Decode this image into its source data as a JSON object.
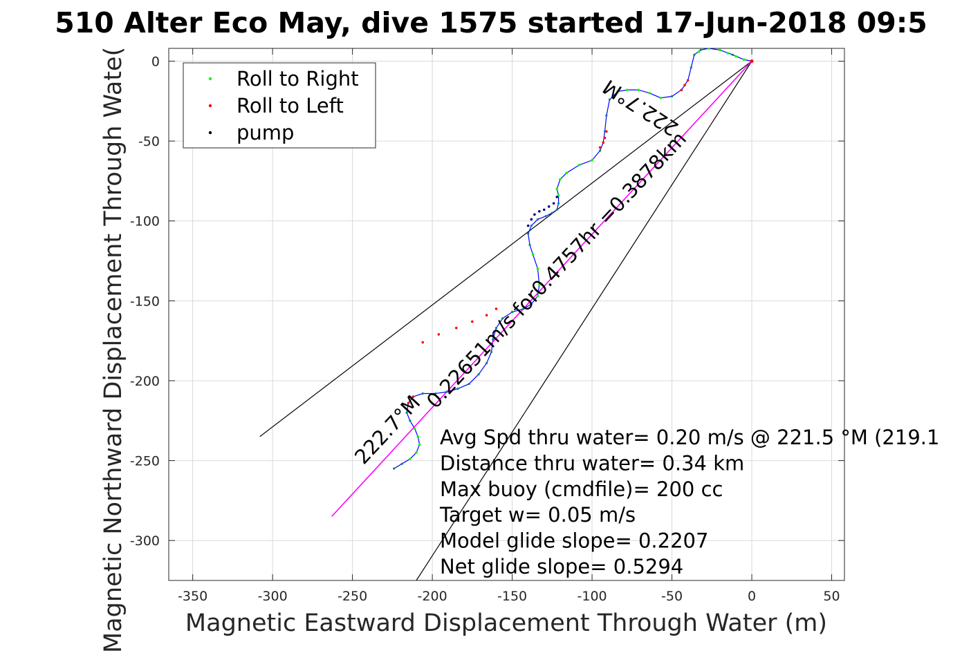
{
  "chart_data": {
    "type": "line",
    "title": "510 Alter Eco May, dive 1575 started 17-Jun-2018 09:5",
    "xlabel": "Magnetic Eastward Displacement Through Water (m)",
    "ylabel": "Magnetic Northward Displacement Through Wate(",
    "xlim": [
      -365,
      58
    ],
    "ylim": [
      -325,
      8
    ],
    "xticks": [
      -350,
      -300,
      -250,
      -200,
      -150,
      -100,
      -50,
      0,
      50
    ],
    "yticks": [
      0,
      -50,
      -100,
      -150,
      -200,
      -250,
      -300
    ],
    "grid": true,
    "legend_position": "top-left",
    "legend": [
      {
        "label": "Roll to Right",
        "color": "#00ff00"
      },
      {
        "label": "Roll to Left",
        "color": "#ff0000"
      },
      {
        "label": "pump",
        "color": "#000000"
      }
    ],
    "series": [
      {
        "name": "",
        "style": "track",
        "color": "#0000ff",
        "x": [
          0,
          -5,
          -12,
          -20,
          -27,
          -32,
          -36,
          -38,
          -40,
          -44,
          -50,
          -57,
          -64,
          -71,
          -78,
          -84,
          -89,
          -91,
          -92,
          -93,
          -95,
          -100,
          -108,
          -116,
          -120,
          -122,
          -121,
          -121,
          -122,
          -125,
          -129,
          -134,
          -138,
          -140,
          -139,
          -137,
          -134,
          -133,
          -134,
          -138,
          -143,
          -150,
          -156,
          -160,
          -162,
          -163,
          -166,
          -171,
          -177,
          -184,
          -191,
          -198,
          -206,
          -212,
          -215,
          -216,
          -214,
          -211,
          -209,
          -208,
          -210,
          -214,
          -219,
          -224
        ],
        "y": [
          0,
          1,
          4,
          7,
          8,
          7,
          4,
          -4,
          -12,
          -18,
          -22,
          -23,
          -20,
          -18,
          -18,
          -19,
          -24,
          -34,
          -44,
          -51,
          -56,
          -62,
          -65,
          -70,
          -74,
          -80,
          -84,
          -89,
          -93,
          -95,
          -97,
          -99,
          -103,
          -108,
          -115,
          -121,
          -130,
          -140,
          -147,
          -152,
          -155,
          -157,
          -161,
          -167,
          -174,
          -182,
          -189,
          -196,
          -202,
          -205,
          -207,
          -208,
          -208,
          -210,
          -214,
          -220,
          -225,
          -230,
          -235,
          -240,
          -245,
          -249,
          -252,
          -255
        ]
      },
      {
        "name": "",
        "style": "net",
        "color": "#ff00ff",
        "x": [
          0,
          -263
        ],
        "y": [
          0,
          -285
        ]
      }
    ],
    "pump_x": [
      -122,
      -124,
      -127,
      -130,
      -133,
      -136,
      -138,
      -140
    ],
    "pump_y": [
      -85,
      -89,
      -91,
      -93,
      -94,
      -96,
      -99,
      -103
    ],
    "left_roll_x": [
      -40,
      -42,
      -44,
      -91,
      -92,
      -93,
      -95,
      -160,
      -166,
      -175,
      -185,
      -196,
      -206,
      -212,
      -215
    ],
    "left_roll_y": [
      -12,
      -15,
      -18,
      -44,
      -48,
      -51,
      -54,
      -155,
      -159,
      -163,
      -167,
      -171,
      -176,
      -210,
      -214
    ],
    "right_roll_x": [
      -5,
      -10,
      -15,
      -20,
      -27,
      -33,
      -57,
      -64,
      -71,
      -78,
      -84,
      -100,
      -108,
      -116,
      -120,
      -122,
      -121,
      -137,
      -134,
      -133,
      -134,
      -211,
      -209,
      -208,
      -210,
      -214
    ],
    "right_roll_y": [
      1,
      3,
      5,
      7,
      8,
      6,
      -23,
      -20,
      -18,
      -18,
      -19,
      -62,
      -65,
      -70,
      -74,
      -80,
      -84,
      -121,
      -130,
      -140,
      -147,
      -230,
      -235,
      -240,
      -245,
      -249
    ],
    "reference_lines": [
      {
        "x": [
          0,
          -308
        ],
        "y": [
          0,
          -235
        ],
        "color": "#000000"
      },
      {
        "x": [
          0,
          -210
        ],
        "y": [
          0,
          -325
        ],
        "color": "#000000"
      }
    ],
    "annotations": [
      {
        "text": "222.7°M",
        "x": -45,
        "y": -40,
        "rotation": 213
      },
      {
        "text": "0.22651m/s for0.4757hr =0.3878km",
        "x": -198,
        "y": -218,
        "rotation": 313
      },
      {
        "text": "222.7°M",
        "x": -243,
        "y": -253,
        "rotation": 313
      }
    ],
    "stats": [
      "Avg Spd thru water=  0.20 m/s @ 221.5 °M (219.1",
      "Distance thru water=  0.34 km",
      "Max buoy (cmdfile)= 200 cc",
      "Target w= 0.05 m/s",
      "Model glide slope= 0.2207",
      "Net glide slope= 0.5294"
    ]
  }
}
